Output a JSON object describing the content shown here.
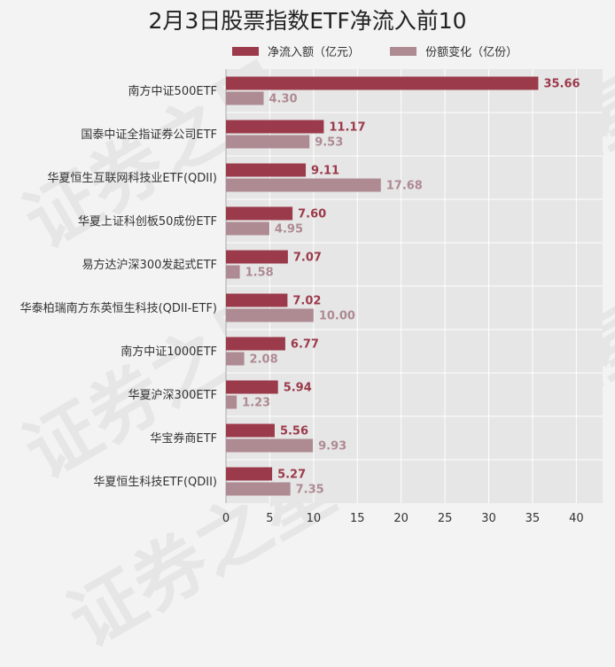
{
  "chart_data": {
    "type": "bar",
    "orientation": "horizontal",
    "title": "2月3日股票指数ETF净流入前10",
    "categories": [
      "南方中证500ETF",
      "国泰中证全指证券公司ETF",
      "华夏恒生互联网科技业ETF(QDII)",
      "华夏上证科创板50成份ETF",
      "易方达沪深300发起式ETF",
      "华泰柏瑞南方东英恒生科技(QDII-ETF)",
      "南方中证1000ETF",
      "华夏沪深300ETF",
      "华宝券商ETF",
      "华夏恒生科技ETF(QDII)"
    ],
    "series": [
      {
        "name": "净流入额（亿元）",
        "color": "#9b3a4a",
        "values": [
          35.66,
          11.17,
          9.11,
          7.6,
          7.07,
          7.02,
          6.77,
          5.94,
          5.56,
          5.27
        ],
        "labels": [
          "35.66",
          "11.17",
          "9.11",
          "7.60",
          "7.07",
          "7.02",
          "6.77",
          "5.94",
          "5.56",
          "5.27"
        ]
      },
      {
        "name": "份额变化（亿份）",
        "color": "#ae8a93",
        "values": [
          4.3,
          9.53,
          17.68,
          4.95,
          1.58,
          10.0,
          2.08,
          1.23,
          9.93,
          7.35
        ],
        "labels": [
          "4.30",
          "9.53",
          "17.68",
          "4.95",
          "1.58",
          "10.00",
          "2.08",
          "1.23",
          "9.93",
          "7.35"
        ]
      }
    ],
    "xlim": [
      0,
      43
    ],
    "xticks": [
      "0",
      "5",
      "10",
      "15",
      "20",
      "25",
      "30",
      "35",
      "40"
    ],
    "grid": true,
    "legend_position": "top"
  },
  "watermark": "证券之星"
}
